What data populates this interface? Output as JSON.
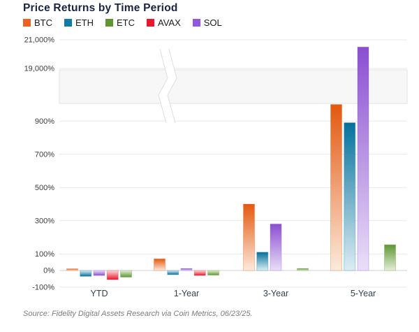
{
  "title": "Price Returns by Time Period",
  "source": "Source: Fidelity Digital Assets Research via Coin Metrics, 06/23/25.",
  "legend": {
    "items": [
      {
        "label": "BTC",
        "color": "#EB6224"
      },
      {
        "label": "ETH",
        "color": "#147AA5"
      },
      {
        "label": "ETC",
        "color": "#5E9632"
      },
      {
        "label": "AVAX",
        "color": "#E8192C"
      },
      {
        "label": "SOL",
        "color": "#9258DC"
      }
    ]
  },
  "chart_data": {
    "type": "bar",
    "title": "Price Returns by Time Period",
    "categories": [
      "YTD",
      "1-Year",
      "3-Year",
      "5-Year"
    ],
    "series": [
      {
        "name": "BTC",
        "color": "#E3580F",
        "light": "#FCEADC",
        "values": [
          10,
          70,
          400,
          1000
        ]
      },
      {
        "name": "ETH",
        "color": "#05719D",
        "light": "#DCEDF3",
        "values": [
          -35,
          -25,
          110,
          890
        ]
      },
      {
        "name": "SOL",
        "color": "#8A4FD0",
        "light": "#EADFF8",
        "values": [
          -30,
          12,
          280,
          20500
        ]
      },
      {
        "name": "AVAX",
        "color": "#E8192C",
        "light": "#FBDADD",
        "values": [
          -55,
          -30,
          null,
          null
        ]
      },
      {
        "name": "ETC",
        "color": "#5E9632",
        "light": "#E3EED7",
        "values": [
          -40,
          -28,
          12,
          155
        ]
      }
    ],
    "yaxis": {
      "unit": "%",
      "lower_ticks": [
        {
          "v": -100,
          "label": "-100%"
        },
        {
          "v": 0,
          "label": "0%"
        },
        {
          "v": 100,
          "label": "100%"
        },
        {
          "v": 300,
          "label": "300%"
        },
        {
          "v": 500,
          "label": "500%"
        },
        {
          "v": 700,
          "label": "700%"
        },
        {
          "v": 900,
          "label": "900%"
        }
      ],
      "upper_ticks": [
        {
          "v": 19000,
          "label": "19,000%"
        },
        {
          "v": 21000,
          "label": "21,000%"
        }
      ]
    },
    "axis_break": {
      "lower_visible_max": 1000,
      "upper_min": 19000,
      "upper_max": 21000
    },
    "grid": true,
    "legend_position": "top-left",
    "bar_order_note": "bars left-to-right within each group: BTC, ETH, SOL, AVAX, ETC"
  }
}
